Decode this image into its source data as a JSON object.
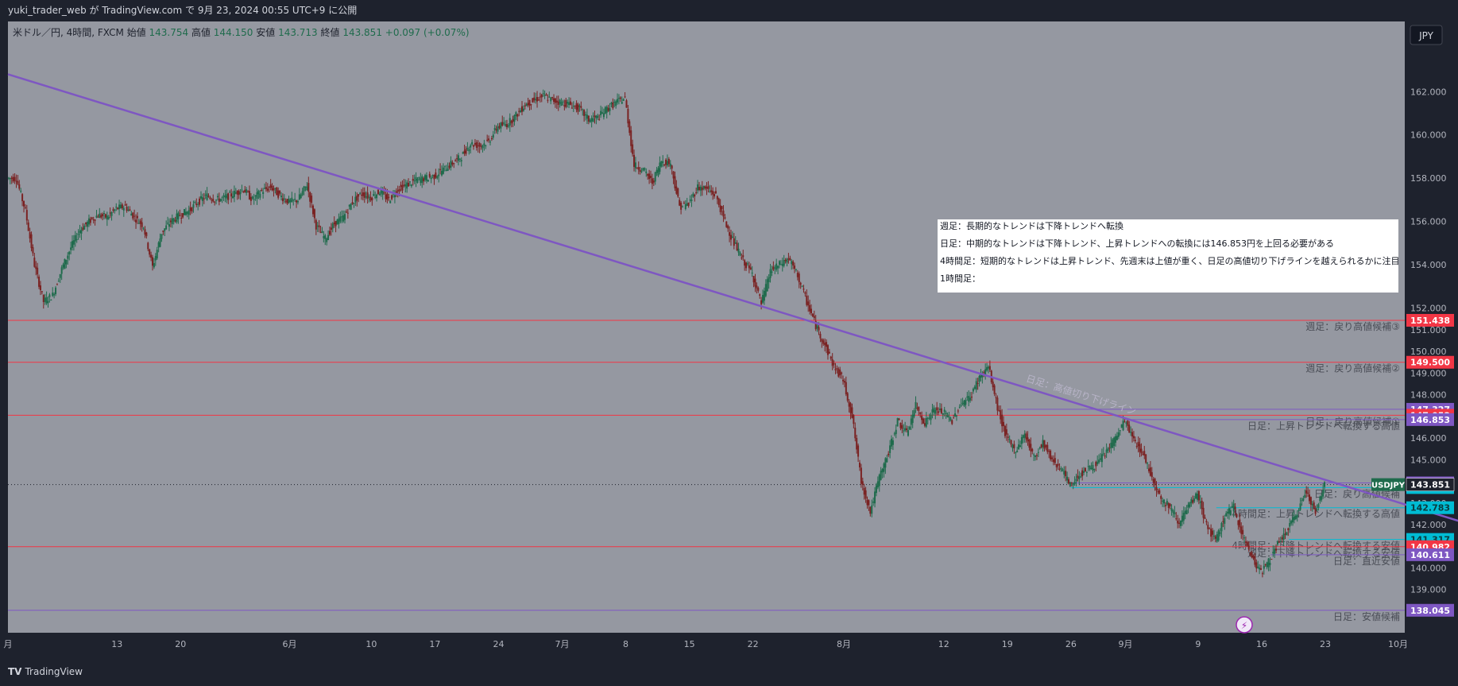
{
  "header": {
    "publish_text": "yuki_trader_web が TradingView.com で 9月 23, 2024 00:55 UTC+9 に公開"
  },
  "legend": {
    "symbol": "米ドル／円, 4時間, FXCM",
    "open_label": "始値",
    "open": "143.754",
    "high_label": "高値",
    "high": "144.150",
    "low_label": "安値",
    "low": "143.713",
    "close_label": "終値",
    "close": "143.851",
    "change": "+0.097 (+0.07%)"
  },
  "currency_button": "JPY",
  "footer": {
    "brand": "TradingView"
  },
  "note_box": {
    "lines": [
      "週足：長期的なトレンドは下降トレンドへ転換",
      "日足：中期的なトレンドは下降トレンド、上昇トレンドへの転換には146.853円を上回る必要がある",
      "4時間足：短期的なトレンドは上昇トレンド、先週末は上値が重く、日足の高値切り下げラインを越えられるかに注目",
      "1時間足："
    ]
  },
  "colors": {
    "plot_bg": "#9598a1",
    "frame_bg": "#1e222d",
    "up_candle": "#1f6b4c",
    "down_candle": "#7a2222",
    "trendline": "#7e57c2",
    "red_level": "#f23645",
    "purple_level": "#7e57c2",
    "teal_level": "#00bcd4"
  },
  "chart_data": {
    "type": "candlestick",
    "title": "",
    "symbol": "USDJPY",
    "timeframe": "4時間",
    "y_axis": {
      "ylim": [
        138.0,
        163.0
      ],
      "ticks": [
        139.0,
        140.0,
        141.0,
        142.0,
        143.0,
        144.0,
        145.0,
        146.0,
        147.0,
        148.0,
        149.0,
        150.0,
        151.0,
        152.0,
        154.0,
        156.0,
        158.0,
        160.0,
        162.0
      ],
      "tick_labels": [
        "139.000",
        "140.000",
        "141.000",
        "142.000",
        "143.000",
        "144.000",
        "145.000",
        "146.000",
        "147.000",
        "148.000",
        "149.000",
        "150.000",
        "151.000",
        "152.000",
        "154.000",
        "156.000",
        "158.000",
        "160.000",
        "162.000"
      ]
    },
    "x_axis": {
      "ticks": [
        {
          "label": "月",
          "day": 0
        },
        {
          "label": "13",
          "day": 12
        },
        {
          "label": "20",
          "day": 19
        },
        {
          "label": "6月",
          "day": 31
        },
        {
          "label": "10",
          "day": 40
        },
        {
          "label": "17",
          "day": 47
        },
        {
          "label": "24",
          "day": 54
        },
        {
          "label": "7月",
          "day": 61
        },
        {
          "label": "8",
          "day": 68
        },
        {
          "label": "15",
          "day": 75
        },
        {
          "label": "22",
          "day": 82
        },
        {
          "label": "8月",
          "day": 92
        },
        {
          "label": "12",
          "day": 103
        },
        {
          "label": "19",
          "day": 110
        },
        {
          "label": "26",
          "day": 117
        },
        {
          "label": "9月",
          "day": 123
        },
        {
          "label": "9",
          "day": 131
        },
        {
          "label": "16",
          "day": 138
        },
        {
          "label": "23",
          "day": 145
        },
        {
          "label": "10月",
          "day": 153
        }
      ],
      "xlim_days": [
        0,
        161
      ]
    },
    "price_path": [
      [
        0,
        158.0
      ],
      [
        1,
        158.0
      ],
      [
        2,
        156.5
      ],
      [
        3,
        154.0
      ],
      [
        4,
        152.3
      ],
      [
        5,
        152.6
      ],
      [
        6,
        153.8
      ],
      [
        7,
        154.8
      ],
      [
        8,
        155.6
      ],
      [
        9,
        156.0
      ],
      [
        10,
        156.3
      ],
      [
        11,
        156.2
      ],
      [
        12,
        156.6
      ],
      [
        13,
        156.7
      ],
      [
        14,
        156.2
      ],
      [
        15,
        155.8
      ],
      [
        16,
        153.9
      ],
      [
        17,
        155.5
      ],
      [
        18,
        156.0
      ],
      [
        19,
        156.3
      ],
      [
        20,
        156.5
      ],
      [
        21,
        156.9
      ],
      [
        22,
        157.2
      ],
      [
        23,
        157.0
      ],
      [
        24,
        157.1
      ],
      [
        25,
        157.3
      ],
      [
        26,
        157.5
      ],
      [
        27,
        157.0
      ],
      [
        28,
        157.4
      ],
      [
        29,
        157.6
      ],
      [
        30,
        157.2
      ],
      [
        31,
        156.9
      ],
      [
        32,
        157.0
      ],
      [
        33,
        157.7
      ],
      [
        34,
        155.8
      ],
      [
        35,
        155.2
      ],
      [
        36,
        155.9
      ],
      [
        37,
        156.2
      ],
      [
        38,
        156.9
      ],
      [
        39,
        157.3
      ],
      [
        40,
        157.1
      ],
      [
        41,
        157.4
      ],
      [
        42,
        157.0
      ],
      [
        43,
        157.5
      ],
      [
        44,
        157.7
      ],
      [
        45,
        157.9
      ],
      [
        46,
        158.0
      ],
      [
        47,
        158.1
      ],
      [
        48,
        158.4
      ],
      [
        49,
        158.7
      ],
      [
        50,
        159.0
      ],
      [
        51,
        159.6
      ],
      [
        52,
        159.5
      ],
      [
        53,
        159.7
      ],
      [
        54,
        160.4
      ],
      [
        55,
        160.5
      ],
      [
        56,
        160.9
      ],
      [
        57,
        161.4
      ],
      [
        58,
        161.6
      ],
      [
        59,
        161.8
      ],
      [
        60,
        161.6
      ],
      [
        61,
        161.5
      ],
      [
        62,
        161.4
      ],
      [
        63,
        161.2
      ],
      [
        64,
        160.7
      ],
      [
        65,
        160.8
      ],
      [
        66,
        161.2
      ],
      [
        67,
        161.5
      ],
      [
        68,
        161.7
      ],
      [
        69,
        158.6
      ],
      [
        70,
        158.4
      ],
      [
        71,
        157.8
      ],
      [
        72,
        158.8
      ],
      [
        73,
        158.7
      ],
      [
        74,
        156.7
      ],
      [
        75,
        156.8
      ],
      [
        76,
        157.6
      ],
      [
        77,
        157.5
      ],
      [
        78,
        157.2
      ],
      [
        79,
        156.0
      ],
      [
        80,
        155.0
      ],
      [
        81,
        154.2
      ],
      [
        82,
        153.6
      ],
      [
        83,
        152.2
      ],
      [
        84,
        153.7
      ],
      [
        85,
        154.0
      ],
      [
        86,
        154.3
      ],
      [
        87,
        153.5
      ],
      [
        88,
        152.3
      ],
      [
        89,
        151.2
      ],
      [
        90,
        150.3
      ],
      [
        91,
        149.3
      ],
      [
        92,
        148.7
      ],
      [
        93,
        147.0
      ],
      [
        94,
        144.0
      ],
      [
        95,
        142.6
      ],
      [
        96,
        144.2
      ],
      [
        97,
        145.3
      ],
      [
        98,
        146.8
      ],
      [
        99,
        146.2
      ],
      [
        100,
        147.5
      ],
      [
        101,
        146.7
      ],
      [
        102,
        147.3
      ],
      [
        103,
        147.2
      ],
      [
        104,
        146.8
      ],
      [
        105,
        147.6
      ],
      [
        106,
        147.9
      ],
      [
        107,
        148.8
      ],
      [
        108,
        149.3
      ],
      [
        109,
        147.4
      ],
      [
        110,
        146.0
      ],
      [
        111,
        145.4
      ],
      [
        112,
        146.2
      ],
      [
        113,
        145.1
      ],
      [
        114,
        145.8
      ],
      [
        115,
        145.0
      ],
      [
        116,
        144.6
      ],
      [
        117,
        143.8
      ],
      [
        118,
        144.3
      ],
      [
        119,
        144.6
      ],
      [
        120,
        144.8
      ],
      [
        121,
        145.4
      ],
      [
        122,
        146.0
      ],
      [
        123,
        146.8
      ],
      [
        124,
        145.9
      ],
      [
        125,
        145.3
      ],
      [
        126,
        144.2
      ],
      [
        127,
        143.2
      ],
      [
        128,
        142.8
      ],
      [
        129,
        142.1
      ],
      [
        130,
        142.8
      ],
      [
        131,
        143.4
      ],
      [
        132,
        142.0
      ],
      [
        133,
        141.2
      ],
      [
        134,
        142.4
      ],
      [
        135,
        142.8
      ],
      [
        136,
        141.5
      ],
      [
        137,
        140.5
      ],
      [
        138,
        139.8
      ],
      [
        139,
        140.4
      ],
      [
        140,
        141.2
      ],
      [
        141,
        141.8
      ],
      [
        142,
        142.6
      ],
      [
        143,
        143.6
      ],
      [
        144,
        142.5
      ],
      [
        145,
        143.85
      ]
    ],
    "trendline": {
      "label": "日足：高値切り下げライン",
      "start": [
        0,
        162.8
      ],
      "end": [
        161,
        142.0
      ]
    },
    "horizontal_levels": [
      {
        "price": 151.438,
        "badge": "151.438",
        "color": "red",
        "label": "週足：戻り高値候補③",
        "start_day": 0
      },
      {
        "price": 149.5,
        "badge": "149.500",
        "color": "red",
        "label": "週足：戻り高値候補②",
        "start_day": 0
      },
      {
        "price": 147.327,
        "badge": "147.327",
        "color": "purple",
        "label": "",
        "start_day": 110
      },
      {
        "price": 147.053,
        "badge": "147.053",
        "color": "red",
        "label": "日足：戻り高値候補①",
        "start_day": 0
      },
      {
        "price": 146.853,
        "badge": "146.853",
        "color": "purple",
        "label": "日足：上昇トレンドへ転換する高値",
        "start_day": 123
      },
      {
        "price": 143.93,
        "badge": "143.930",
        "color": "purple",
        "label": "",
        "start_day": 117
      },
      {
        "price": 143.713,
        "badge": "143.713",
        "color": "teal",
        "label": "日足：戻り高値候補",
        "start_day": 117
      },
      {
        "price": 142.783,
        "badge": "142.783",
        "color": "teal",
        "label": "4時間足：上昇トレンドへ転換する高値",
        "start_day": 133
      },
      {
        "price": 141.317,
        "badge": "141.317",
        "color": "teal",
        "label": "4時間足：下降トレンドへ転換する安値",
        "start_day": 141
      },
      {
        "price": 140.982,
        "badge": "140.982",
        "color": "red",
        "label": "週足：下降トレンドへ転換する安値",
        "start_day": 0
      },
      {
        "price": 140.611,
        "badge": "140.611",
        "color": "purple",
        "label": "日足：直近安値",
        "start_day": 139
      },
      {
        "price": 138.045,
        "badge": "138.045",
        "color": "purple",
        "label": "日足：安値候補",
        "start_day": 0
      }
    ],
    "last_price": {
      "symbol": "USDJPY",
      "price": 143.851,
      "badge": "143.851"
    }
  }
}
